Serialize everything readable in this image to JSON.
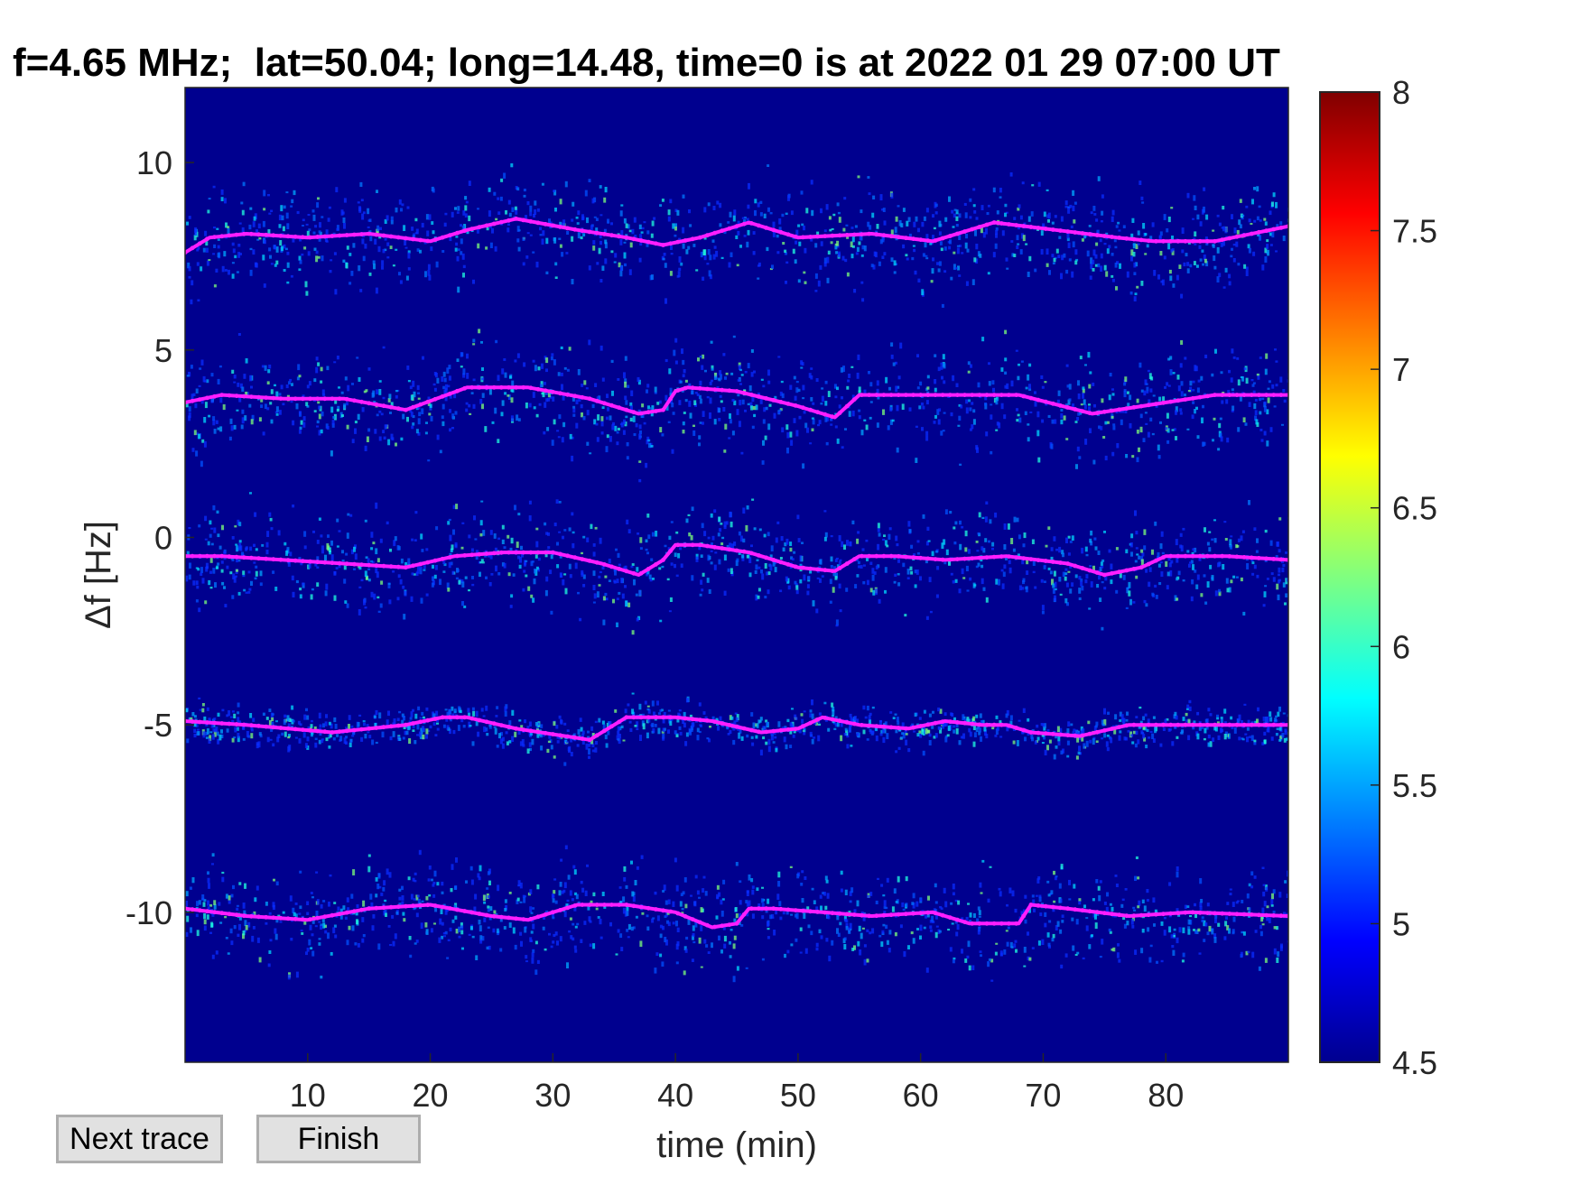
{
  "chart_data": {
    "type": "heatmap",
    "title": "f=4.65 MHz;  lat=50.04; long=14.48, time=0 is at 2022 01 29 07:00 UT",
    "xlabel": "time (min)",
    "ylabel": "Δf [Hz]",
    "xlim": [
      0,
      90
    ],
    "ylim": [
      -14,
      12
    ],
    "xticks": [
      10,
      20,
      30,
      40,
      50,
      60,
      70,
      80
    ],
    "yticks": [
      10,
      5,
      0,
      -5,
      -10
    ],
    "colorbar": {
      "colormap": "jet",
      "clim": [
        4.5,
        8
      ],
      "ticks": [
        8,
        7.5,
        7,
        6.5,
        6,
        5.5,
        5,
        4.5
      ],
      "tick_labels": [
        "8",
        "7.5",
        "7",
        "6.5",
        "6",
        "5.5",
        "5",
        "4.5"
      ]
    },
    "background_color": "#00008f",
    "trace_color": "#ff1eff",
    "series": [
      {
        "x": [
          0,
          2,
          5,
          10,
          15,
          20,
          23,
          27,
          32,
          36,
          39,
          42,
          46,
          50,
          56,
          61,
          66,
          71,
          76,
          79,
          84,
          90
        ],
        "y": [
          7.6,
          8.0,
          8.1,
          8.0,
          8.1,
          7.9,
          8.2,
          8.5,
          8.2,
          8.0,
          7.8,
          8.0,
          8.4,
          8.0,
          8.1,
          7.9,
          8.4,
          8.2,
          8.0,
          7.9,
          7.9,
          8.3
        ]
      },
      {
        "x": [
          0,
          3,
          8,
          13,
          18,
          23,
          28,
          33,
          37,
          39,
          40,
          41,
          45,
          50,
          53,
          55,
          58,
          63,
          68,
          74,
          78,
          84,
          90
        ],
        "y": [
          3.6,
          3.8,
          3.7,
          3.7,
          3.4,
          4.0,
          4.0,
          3.7,
          3.3,
          3.4,
          3.9,
          4.0,
          3.9,
          3.5,
          3.2,
          3.8,
          3.8,
          3.8,
          3.8,
          3.3,
          3.5,
          3.8,
          3.8
        ]
      },
      {
        "x": [
          0,
          3,
          8,
          13,
          18,
          22,
          26,
          30,
          34,
          37,
          39,
          40,
          42,
          46,
          50,
          53,
          55,
          58,
          62,
          67,
          72,
          75,
          78,
          80,
          85,
          90
        ],
        "y": [
          -0.5,
          -0.5,
          -0.6,
          -0.7,
          -0.8,
          -0.5,
          -0.4,
          -0.4,
          -0.7,
          -1.0,
          -0.6,
          -0.2,
          -0.2,
          -0.4,
          -0.8,
          -0.9,
          -0.5,
          -0.5,
          -0.6,
          -0.5,
          -0.7,
          -1.0,
          -0.8,
          -0.5,
          -0.5,
          -0.6
        ]
      },
      {
        "x": [
          0,
          5,
          12,
          18,
          21,
          23,
          27,
          31,
          33,
          35,
          36,
          40,
          43,
          47,
          50,
          52,
          55,
          59,
          62,
          65,
          67,
          69,
          73,
          77,
          80,
          85,
          90
        ],
        "y": [
          -4.9,
          -5.0,
          -5.2,
          -5.0,
          -4.8,
          -4.8,
          -5.1,
          -5.3,
          -5.4,
          -5.0,
          -4.8,
          -4.8,
          -4.9,
          -5.2,
          -5.1,
          -4.8,
          -5.0,
          -5.1,
          -4.9,
          -5.0,
          -5.0,
          -5.2,
          -5.3,
          -5.0,
          -5.0,
          -5.0,
          -5.0
        ]
      },
      {
        "x": [
          0,
          5,
          10,
          15,
          20,
          25,
          28,
          32,
          36,
          40,
          43,
          45,
          46,
          48,
          52,
          56,
          61,
          64,
          67,
          68,
          69,
          72,
          77,
          82,
          90
        ],
        "y": [
          -9.9,
          -10.1,
          -10.2,
          -9.9,
          -9.8,
          -10.1,
          -10.2,
          -9.8,
          -9.8,
          -10.0,
          -10.4,
          -10.3,
          -9.9,
          -9.9,
          -10.0,
          -10.1,
          -10.0,
          -10.3,
          -10.3,
          -10.3,
          -9.8,
          -9.9,
          -10.1,
          -10.0,
          -10.1
        ]
      }
    ]
  },
  "buttons": {
    "next_trace": "Next trace",
    "finish": "Finish"
  }
}
